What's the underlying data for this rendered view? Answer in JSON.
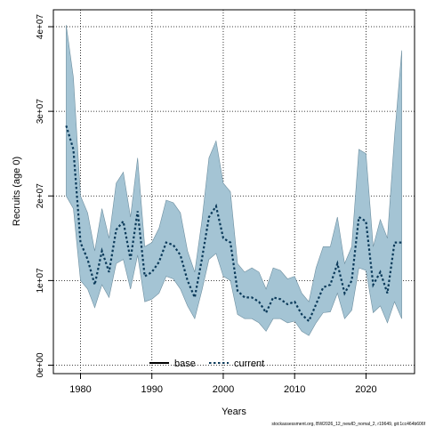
{
  "chart_data": {
    "type": "line",
    "xlabel": "Years",
    "ylabel": "Recruits (age 0)",
    "xlim": [
      1976.2,
      2026.8
    ],
    "ylim": [
      -1000000.0,
      42000000.0
    ],
    "x_ticks": [
      1980,
      1990,
      2000,
      2010,
      2020
    ],
    "x_tick_labels": [
      "1980",
      "1990",
      "2000",
      "2010",
      "2020"
    ],
    "y_ticks": [
      0,
      10000000.0,
      20000000.0,
      30000000.0,
      40000000.0
    ],
    "y_tick_labels": [
      "0e+00",
      "1e+07",
      "2e+07",
      "3e+07",
      "4e+07"
    ],
    "grid": true,
    "legend_position": "bottom-center",
    "series": [
      {
        "name": "base",
        "color": "#000000",
        "style": "solid",
        "values": []
      },
      {
        "name": "current",
        "color": "#0b3a5a",
        "style": "dotted",
        "x": [
          1978,
          1979,
          1980,
          1981,
          1982,
          1983,
          1984,
          1985,
          1986,
          1987,
          1988,
          1989,
          1990,
          1991,
          1992,
          1993,
          1994,
          1995,
          1996,
          1997,
          1998,
          1999,
          2000,
          2001,
          2002,
          2003,
          2004,
          2005,
          2006,
          2007,
          2008,
          2009,
          2010,
          2011,
          2012,
          2013,
          2014,
          2015,
          2016,
          2017,
          2018,
          2019,
          2020,
          2021,
          2022,
          2023,
          2024,
          2025
        ],
        "values": [
          28300000.0,
          25500000.0,
          14500000.0,
          12500000.0,
          9500000.0,
          13500000.0,
          11000000.0,
          16000000.0,
          17000000.0,
          12500000.0,
          18200000.0,
          10500000.0,
          11000000.0,
          12200000.0,
          14500000.0,
          14200000.0,
          13000000.0,
          10000000.0,
          8000000.0,
          12500000.0,
          17500000.0,
          18800000.0,
          15000000.0,
          14500000.0,
          8800000.0,
          8000000.0,
          8000000.0,
          7500000.0,
          6200000.0,
          8000000.0,
          7800000.0,
          7200000.0,
          7500000.0,
          6000000.0,
          5200000.0,
          7200000.0,
          9200000.0,
          9500000.0,
          12000000.0,
          8500000.0,
          10000000.0,
          17500000.0,
          17000000.0,
          9500000.0,
          11000000.0,
          8500000.0,
          14500000.0,
          14500000.0
        ]
      },
      {
        "name": "confidence band",
        "color": "#a4c4d4",
        "upper": [
          40200000.0,
          34000000.0,
          20000000.0,
          18000000.0,
          13500000.0,
          18500000.0,
          15000000.0,
          21500000.0,
          22800000.0,
          17500000.0,
          24500000.0,
          14000000.0,
          14500000.0,
          16200000.0,
          19500000.0,
          19200000.0,
          18000000.0,
          13500000.0,
          11000000.0,
          17000000.0,
          24500000.0,
          26500000.0,
          21500000.0,
          20500000.0,
          12000000.0,
          11000000.0,
          11500000.0,
          11000000.0,
          9000000.0,
          11500000.0,
          11200000.0,
          10200000.0,
          10500000.0,
          8500000.0,
          7500000.0,
          11500000.0,
          14000000.0,
          14000000.0,
          17500000.0,
          12000000.0,
          14000000.0,
          25500000.0,
          25000000.0,
          14000000.0,
          17200000.0,
          15000000.0,
          27000000.0,
          37200000.0
        ],
        "lower": [
          20000000.0,
          18500000.0,
          10000000.0,
          9000000.0,
          6800000.0,
          9500000.0,
          8000000.0,
          12000000.0,
          12500000.0,
          9000000.0,
          13000000.0,
          7500000.0,
          7800000.0,
          8500000.0,
          10500000.0,
          10200000.0,
          9000000.0,
          7000000.0,
          5500000.0,
          8800000.0,
          12500000.0,
          13200000.0,
          10500000.0,
          10000000.0,
          6000000.0,
          5500000.0,
          5500000.0,
          5000000.0,
          4000000.0,
          5500000.0,
          5500000.0,
          5000000.0,
          5200000.0,
          4000000.0,
          3500000.0,
          5000000.0,
          6200000.0,
          6300000.0,
          8500000.0,
          5500000.0,
          6500000.0,
          11500000.0,
          11200000.0,
          6200000.0,
          7000000.0,
          5000000.0,
          7500000.0,
          5500000.0
        ]
      }
    ]
  },
  "footer": {
    "source_text": "stockassessment.org, BW2026_12_newID_nomal_2, r19649, git:1cc464b606f"
  }
}
